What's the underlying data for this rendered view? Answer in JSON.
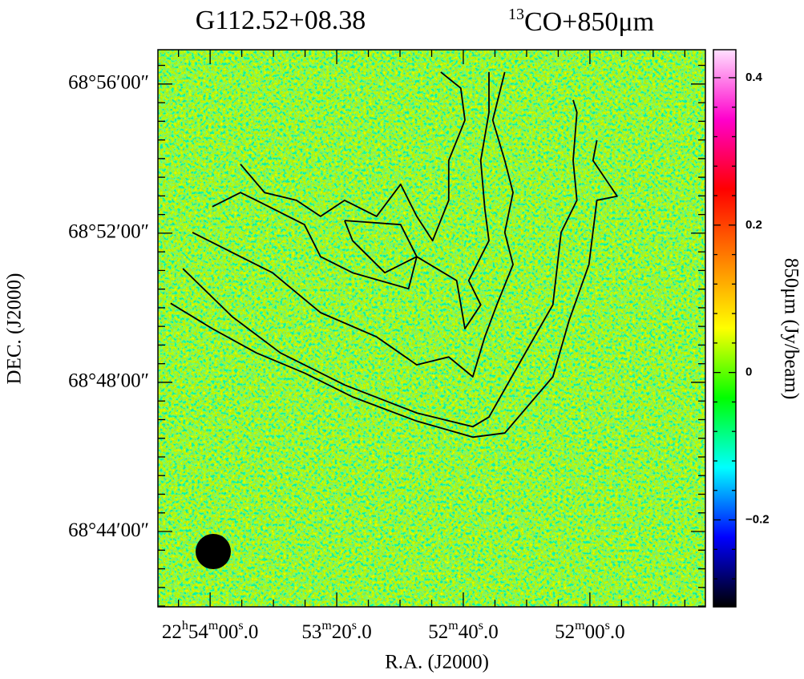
{
  "chart_data": {
    "type": "image",
    "title": "G112.52+08.38",
    "subtitle": "13CO+850μm",
    "x_label": "R.A. (J2000)",
    "y_label": "DEC. (J2000)",
    "colorbar_label": "850μm (Jy/beam)",
    "xlim": [
      82456.5,
      82283.5
    ],
    "xticks": [
      {
        "value": 82440,
        "label": "22h54m00s.0"
      },
      {
        "value": 82400,
        "label": "53m20s.0"
      },
      {
        "value": 82360,
        "label": "52m40s.0"
      },
      {
        "value": 82320,
        "label": "52m00s.0"
      }
    ],
    "ylim": [
      41.98,
      56.92
    ],
    "yticks": [
      {
        "value": 56,
        "label": "68°56′00″"
      },
      {
        "value": 52,
        "label": "68°52′00″"
      },
      {
        "value": 48,
        "label": "68°48′00″"
      },
      {
        "value": 44,
        "label": "68°44′00″"
      }
    ],
    "clim": [
      -0.318,
      0.438
    ],
    "cticks": [
      0.4,
      0.2,
      0,
      {
        "value": -0.2,
        "label": "−0.2"
      }
    ],
    "colormap": [
      "#000000",
      "#0000ff",
      "#00ffff",
      "#00ff00",
      "#ffff00",
      "#ff8000",
      "#ff0000",
      "#ff00cc",
      "#ffe0ff"
    ],
    "title_color": "#e8201a",
    "contour_color": "#000000",
    "contours": [
      {
        "x": [
          82452.5,
          82439.3,
          82425.4,
          82410.2,
          82395.0,
          82374.7,
          82357.0,
          82346.9,
          82331.7,
          82326.6,
          82320.3,
          82317.8,
          82311.4,
          82319.0,
          82317.8
        ],
        "y": [
          50.12,
          49.44,
          48.79,
          48.25,
          47.61,
          46.96,
          46.53,
          46.64,
          48.15,
          49.65,
          51.16,
          52.88,
          52.99,
          53.95,
          54.49
        ]
      },
      {
        "x": [
          82448.6,
          82433.0,
          82417.8,
          82397.5,
          82374.7,
          82357.0,
          82351.9,
          82341.8,
          82331.7,
          82329.1,
          82324.1,
          82325.3,
          82324.1,
          82325.3
        ],
        "y": [
          51.05,
          49.76,
          48.79,
          47.93,
          47.18,
          46.81,
          47.07,
          48.58,
          50.08,
          52.02,
          52.88,
          53.95,
          55.24,
          55.57
        ]
      },
      {
        "x": [
          82445.6,
          82430.4,
          82420.3,
          82405.1,
          82387.4,
          82374.7,
          82364.6,
          82357.0,
          82353.2,
          82349.4,
          82344.3,
          82346.9,
          82344.3,
          82346.9,
          82350.7,
          82346.9
        ],
        "y": [
          52.02,
          51.37,
          50.94,
          49.87,
          49.22,
          48.47,
          48.68,
          48.15,
          49.22,
          50.08,
          51.16,
          52.02,
          53.09,
          53.95,
          55.03,
          56.32
        ]
      },
      {
        "x": [
          82439.3,
          82430.4,
          82425.4,
          82410.2,
          82405.1,
          82395.0,
          82377.3,
          82374.7,
          82362.1,
          82359.5,
          82354.5,
          82358.3,
          82351.9,
          82353.2,
          82354.5,
          82351.9,
          82351.9
        ],
        "y": [
          52.71,
          53.09,
          52.88,
          52.23,
          51.37,
          50.94,
          50.51,
          51.37,
          50.73,
          49.44,
          50.08,
          50.73,
          51.8,
          52.66,
          53.95,
          55.24,
          56.32
        ]
      },
      {
        "x": [
          82430.4,
          82422.8,
          82412.7,
          82405.1,
          82397.5,
          82387.4,
          82379.8,
          82374.7,
          82369.7,
          82364.6,
          82364.6,
          82359.5,
          82360.8,
          82367.1
        ],
        "y": [
          53.85,
          53.09,
          52.88,
          52.45,
          52.88,
          52.45,
          53.31,
          52.45,
          51.8,
          52.88,
          53.95,
          55.03,
          55.89,
          56.32
        ]
      },
      {
        "x": [
          82397.5,
          82379.8,
          82374.7,
          82384.8,
          82395.0,
          82397.5
        ],
        "y": [
          52.34,
          52.23,
          51.37,
          50.94,
          51.8,
          52.34
        ]
      }
    ]
  }
}
